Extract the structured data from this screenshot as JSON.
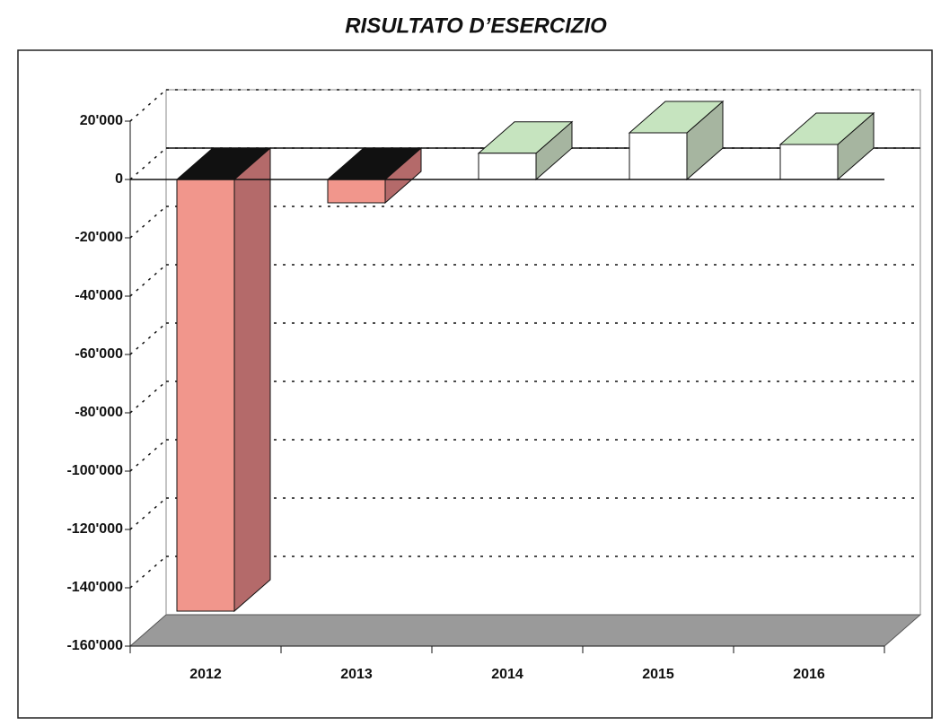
{
  "chart_data": {
    "type": "bar3d",
    "title": "RISULTATO D’ESERCIZIO",
    "categories": [
      "2012",
      "2013",
      "2014",
      "2015",
      "2016"
    ],
    "values": [
      -148000,
      -8000,
      9000,
      16000,
      12000
    ],
    "negative_colors": {
      "front": "#f1968c",
      "side": "#b46a6a",
      "top": "#111111"
    },
    "positive_colors": {
      "front": "#ffffff",
      "side": "#a6b5a0",
      "top": "#c6e4bf"
    },
    "floor_color": "#9a9a9a",
    "ylim": [
      -160000,
      20000
    ],
    "yticks": [
      {
        "value": -160000,
        "label": "-160'000"
      },
      {
        "value": -140000,
        "label": "-140'000"
      },
      {
        "value": -120000,
        "label": "-120'000"
      },
      {
        "value": -100000,
        "label": "-100'000"
      },
      {
        "value": -80000,
        "label": "-80'000"
      },
      {
        "value": -60000,
        "label": "-60'000"
      },
      {
        "value": -40000,
        "label": "-40'000"
      },
      {
        "value": -20000,
        "label": "-20'000"
      },
      0,
      {
        "value": 20000,
        "label": "20'000"
      }
    ],
    "grid": true
  }
}
